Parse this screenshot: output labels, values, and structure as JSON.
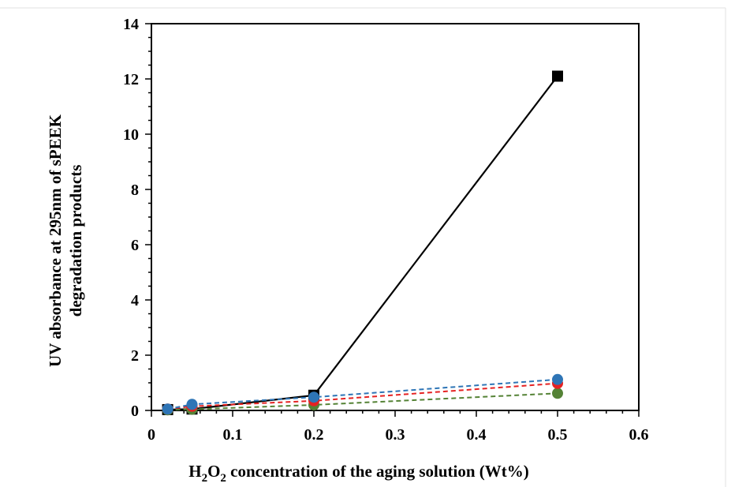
{
  "chart_data": {
    "type": "line",
    "title": "",
    "xlabel": {
      "prefix": "H",
      "sub1": "2",
      "mid": "O",
      "sub2": "2",
      "suffix": " concentration of the aging solution (Wt%)"
    },
    "ylabel": {
      "line1": "UV absorbance at 295nm of sPEEK",
      "line2": "degradation products"
    },
    "xlim": [
      0,
      0.6
    ],
    "ylim": [
      0,
      14
    ],
    "x_ticks": [
      "0",
      "0.1",
      "0.2",
      "0.3",
      "0.4",
      "0.5",
      "0.6"
    ],
    "y_ticks": [
      "0",
      "2",
      "4",
      "6",
      "8",
      "10",
      "12",
      "14"
    ],
    "grid": false,
    "legend": "none",
    "series": [
      {
        "x": [
          0.02,
          0.05,
          0.2,
          0.5
        ],
        "y": [
          0.03,
          0.05,
          0.55,
          12.1
        ],
        "color": "#000000",
        "marker": "square",
        "line": "solid"
      },
      {
        "x": [
          0.02,
          0.05,
          0.2,
          0.5
        ],
        "y": [
          0.02,
          0.04,
          0.2,
          0.62
        ],
        "color": "#548235",
        "marker": "circle",
        "line": "dashed"
      },
      {
        "x": [
          0.02,
          0.05,
          0.2,
          0.5
        ],
        "y": [
          0.05,
          0.15,
          0.35,
          0.98
        ],
        "color": "#e52222",
        "marker": "circle",
        "line": "dashed"
      },
      {
        "x": [
          0.02,
          0.05,
          0.2,
          0.5
        ],
        "y": [
          0.05,
          0.22,
          0.48,
          1.12
        ],
        "color": "#2e75b6",
        "marker": "circle",
        "line": "dashed"
      }
    ]
  }
}
